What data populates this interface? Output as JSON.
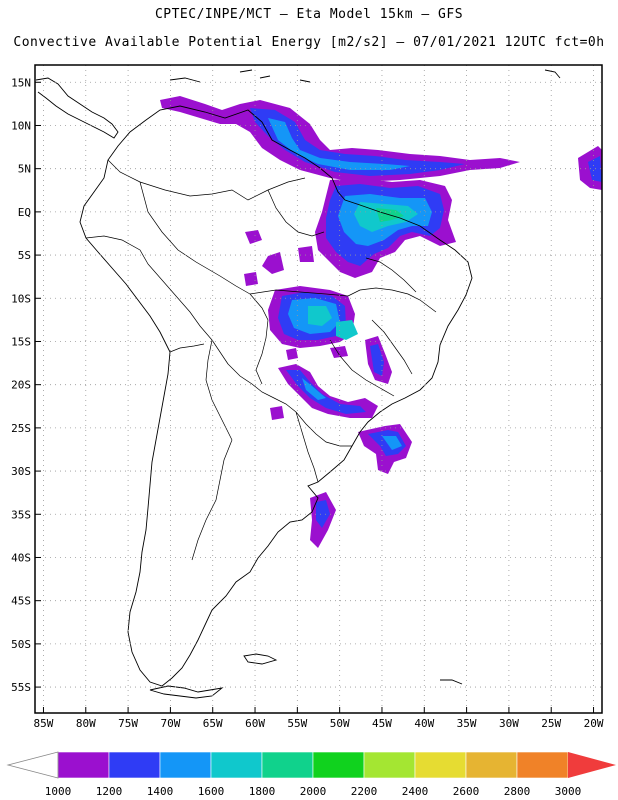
{
  "header": {
    "line1": "CPTEC/INPE/MCT –  Eta Model 15km – GFS",
    "line2": "Convective Available Potential Energy [m2/s2] – 07/01/2021 12UTC fct=0h"
  },
  "map": {
    "region": "South America",
    "lon_range": [
      -86,
      -19
    ],
    "lat_range": [
      -58,
      17
    ],
    "grid": true,
    "lat_labels": [
      "15N",
      "10N",
      "5N",
      "EQ",
      "5S",
      "10S",
      "15S",
      "20S",
      "25S",
      "30S",
      "35S",
      "40S",
      "45S",
      "50S",
      "55S"
    ],
    "lat_values": [
      15,
      10,
      5,
      0,
      -5,
      -10,
      -15,
      -20,
      -25,
      -30,
      -35,
      -40,
      -45,
      -50,
      -55
    ],
    "lon_labels": [
      "85W",
      "80W",
      "75W",
      "70W",
      "65W",
      "60W",
      "55W",
      "50W",
      "45W",
      "40W",
      "35W",
      "30W",
      "25W",
      "20W"
    ],
    "lon_values": [
      -85,
      -80,
      -75,
      -70,
      -65,
      -60,
      -55,
      -50,
      -45,
      -40,
      -35,
      -30,
      -25,
      -20
    ]
  },
  "colorbar": {
    "labels": [
      "1000",
      "1200",
      "1400",
      "1600",
      "1800",
      "2000",
      "2200",
      "2400",
      "2600",
      "2800",
      "3000"
    ],
    "colors": [
      "#9b10cf",
      "#2f3cf5",
      "#1496f7",
      "#10c8cc",
      "#10d28c",
      "#10d21e",
      "#a4e632",
      "#e6dc32",
      "#e6b432",
      "#f08228"
    ],
    "under_color": "#ffffff",
    "over_color": "#f03c3c"
  }
}
